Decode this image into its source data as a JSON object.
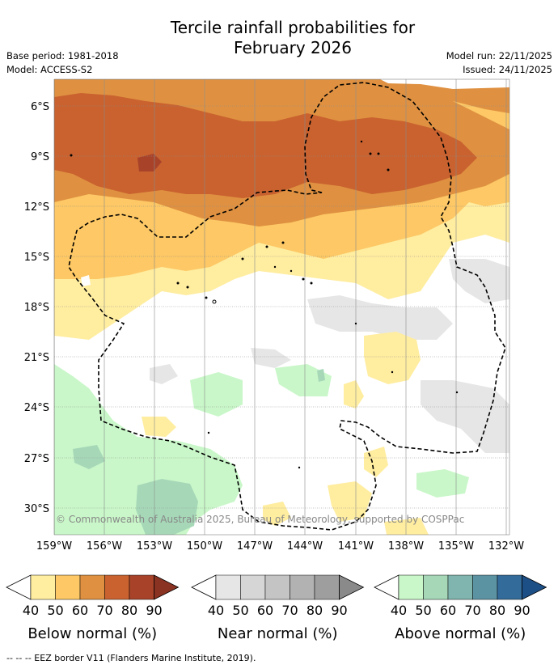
{
  "title_line1": "Tercile rainfall probabilities for",
  "title_line2": "February 2026",
  "meta": {
    "base_period": "Base period: 1981-2018",
    "model": "Model: ACCESS-S2",
    "model_run": "Model run: 22/11/2025",
    "issued": "Issued: 24/11/2025"
  },
  "lat_labels": [
    "6°S",
    "9°S",
    "12°S",
    "15°S",
    "18°S",
    "21°S",
    "24°S",
    "27°S",
    "30°S"
  ],
  "lon_labels": [
    "159°W",
    "156°W",
    "153°W",
    "150°W",
    "147°W",
    "144°W",
    "141°W",
    "138°W",
    "135°W",
    "132°W"
  ],
  "copyright": "© Commonwealth of Australia 2025, Bureau of Meteorology, supported by COSPPac",
  "legends": [
    {
      "title": "Below normal (%)",
      "ticks": [
        "40",
        "50",
        "60",
        "70",
        "80",
        "90"
      ],
      "colors": [
        "#ffeda0",
        "#fdc865",
        "#df9141",
        "#c9622f",
        "#a8432a",
        "#8b3322"
      ]
    },
    {
      "title": "Near normal (%)",
      "ticks": [
        "40",
        "50",
        "60",
        "70",
        "80",
        "90"
      ],
      "colors": [
        "#e6e6e6",
        "#d6d6d6",
        "#c4c4c4",
        "#b2b2b2",
        "#9e9e9e",
        "#8a8a8a"
      ]
    },
    {
      "title": "Above normal (%)",
      "ticks": [
        "40",
        "50",
        "60",
        "70",
        "80",
        "90"
      ],
      "colors": [
        "#c9f7c9",
        "#a6d8b8",
        "#7fb5ae",
        "#5c93a3",
        "#336b9b",
        "#1c4f86"
      ]
    }
  ],
  "footnote": "--  --  -- EEZ border V11 (Flanders Marine Institute, 2019)."
}
